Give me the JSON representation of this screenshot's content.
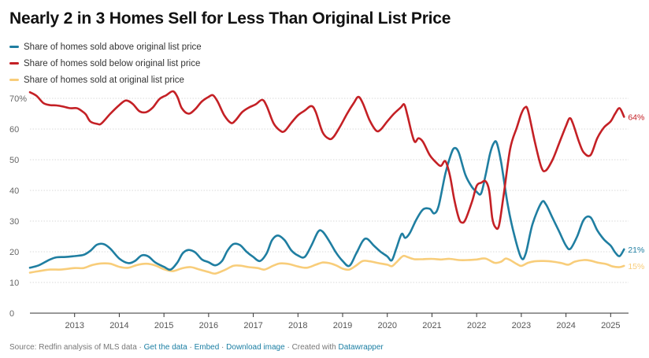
{
  "chart_data": {
    "type": "line",
    "title": "Nearly 2 in 3 Homes Sell for Less Than Original List Price",
    "xlabel": "",
    "ylabel": "",
    "xlim": [
      2012.0,
      2025.4
    ],
    "ylim": [
      0,
      70
    ],
    "yticks": [
      0,
      10,
      20,
      30,
      40,
      50,
      60,
      70
    ],
    "ytick_labels": [
      "0",
      "10",
      "20",
      "30",
      "40",
      "50",
      "60",
      "70%"
    ],
    "xticks": [
      2013,
      2014,
      2015,
      2016,
      2017,
      2018,
      2019,
      2020,
      2021,
      2022,
      2023,
      2024,
      2025
    ],
    "xtick_labels": [
      "2013",
      "2014",
      "2015",
      "2016",
      "2017",
      "2018",
      "2019",
      "2020",
      "2021",
      "2022",
      "2023",
      "2024",
      "2025"
    ],
    "grid": true,
    "legend_position": "top-left",
    "series": [
      {
        "name": "Share of homes sold above original list price",
        "color": "#1f7ea1",
        "end_label": "21%",
        "points": [
          [
            2012.0,
            14.8
          ],
          [
            2012.2,
            15.6
          ],
          [
            2012.45,
            17.5
          ],
          [
            2012.6,
            18.2
          ],
          [
            2012.8,
            18.3
          ],
          [
            2013.0,
            18.6
          ],
          [
            2013.2,
            19.0
          ],
          [
            2013.35,
            20.3
          ],
          [
            2013.5,
            22.3
          ],
          [
            2013.65,
            22.5
          ],
          [
            2013.8,
            21.0
          ],
          [
            2014.0,
            17.8
          ],
          [
            2014.2,
            16.3
          ],
          [
            2014.35,
            17.0
          ],
          [
            2014.5,
            18.8
          ],
          [
            2014.65,
            18.5
          ],
          [
            2014.8,
            16.6
          ],
          [
            2015.0,
            15.1
          ],
          [
            2015.15,
            14.2
          ],
          [
            2015.3,
            16.5
          ],
          [
            2015.42,
            19.5
          ],
          [
            2015.55,
            20.6
          ],
          [
            2015.7,
            19.8
          ],
          [
            2015.85,
            17.5
          ],
          [
            2016.0,
            16.6
          ],
          [
            2016.15,
            15.6
          ],
          [
            2016.3,
            17.0
          ],
          [
            2016.42,
            20.3
          ],
          [
            2016.55,
            22.5
          ],
          [
            2016.7,
            22.2
          ],
          [
            2016.85,
            20.0
          ],
          [
            2017.0,
            18.3
          ],
          [
            2017.15,
            17.0
          ],
          [
            2017.3,
            19.5
          ],
          [
            2017.42,
            23.8
          ],
          [
            2017.55,
            25.3
          ],
          [
            2017.7,
            23.8
          ],
          [
            2017.85,
            20.5
          ],
          [
            2018.0,
            18.8
          ],
          [
            2018.15,
            18.3
          ],
          [
            2018.3,
            22.0
          ],
          [
            2018.45,
            26.5
          ],
          [
            2018.55,
            26.6
          ],
          [
            2018.7,
            23.5
          ],
          [
            2018.85,
            19.8
          ],
          [
            2019.0,
            17.0
          ],
          [
            2019.15,
            15.4
          ],
          [
            2019.3,
            19.3
          ],
          [
            2019.45,
            23.5
          ],
          [
            2019.55,
            24.2
          ],
          [
            2019.7,
            22.0
          ],
          [
            2019.85,
            20.0
          ],
          [
            2020.0,
            18.5
          ],
          [
            2020.1,
            17.2
          ],
          [
            2020.2,
            21.0
          ],
          [
            2020.32,
            25.8
          ],
          [
            2020.4,
            24.5
          ],
          [
            2020.5,
            26.0
          ],
          [
            2020.65,
            30.5
          ],
          [
            2020.8,
            33.8
          ],
          [
            2020.95,
            34.0
          ],
          [
            2021.05,
            32.5
          ],
          [
            2021.15,
            35.0
          ],
          [
            2021.3,
            45.5
          ],
          [
            2021.42,
            51.5
          ],
          [
            2021.5,
            53.8
          ],
          [
            2021.6,
            52.3
          ],
          [
            2021.75,
            45.0
          ],
          [
            2021.9,
            41.0
          ],
          [
            2022.0,
            39.5
          ],
          [
            2022.1,
            39.0
          ],
          [
            2022.2,
            45.0
          ],
          [
            2022.3,
            52.0
          ],
          [
            2022.38,
            55.3
          ],
          [
            2022.45,
            55.5
          ],
          [
            2022.55,
            49.0
          ],
          [
            2022.7,
            35.0
          ],
          [
            2022.85,
            25.0
          ],
          [
            2023.0,
            18.0
          ],
          [
            2023.1,
            19.5
          ],
          [
            2023.25,
            29.0
          ],
          [
            2023.45,
            36.0
          ],
          [
            2023.55,
            35.5
          ],
          [
            2023.7,
            31.0
          ],
          [
            2023.85,
            26.5
          ],
          [
            2024.0,
            22.0
          ],
          [
            2024.1,
            21.0
          ],
          [
            2024.25,
            25.0
          ],
          [
            2024.4,
            30.5
          ],
          [
            2024.55,
            31.2
          ],
          [
            2024.7,
            27.0
          ],
          [
            2024.85,
            24.0
          ],
          [
            2025.0,
            22.0
          ],
          [
            2025.1,
            19.8
          ],
          [
            2025.2,
            18.6
          ],
          [
            2025.3,
            20.8
          ]
        ]
      },
      {
        "name": "Share of homes sold below original list price",
        "color": "#c42025",
        "end_label": "64%",
        "points": [
          [
            2012.0,
            72.0
          ],
          [
            2012.15,
            70.8
          ],
          [
            2012.3,
            68.5
          ],
          [
            2012.45,
            67.8
          ],
          [
            2012.6,
            67.7
          ],
          [
            2012.75,
            67.3
          ],
          [
            2012.9,
            66.8
          ],
          [
            2013.05,
            66.8
          ],
          [
            2013.15,
            66.0
          ],
          [
            2013.25,
            64.8
          ],
          [
            2013.35,
            62.5
          ],
          [
            2013.5,
            61.7
          ],
          [
            2013.6,
            61.8
          ],
          [
            2013.8,
            65.0
          ],
          [
            2014.0,
            67.8
          ],
          [
            2014.15,
            69.3
          ],
          [
            2014.3,
            68.2
          ],
          [
            2014.45,
            65.8
          ],
          [
            2014.6,
            65.5
          ],
          [
            2014.75,
            67.0
          ],
          [
            2014.9,
            69.8
          ],
          [
            2015.05,
            71.0
          ],
          [
            2015.2,
            72.3
          ],
          [
            2015.3,
            70.5
          ],
          [
            2015.4,
            66.8
          ],
          [
            2015.55,
            65.0
          ],
          [
            2015.7,
            66.5
          ],
          [
            2015.85,
            69.0
          ],
          [
            2016.0,
            70.5
          ],
          [
            2016.1,
            71.0
          ],
          [
            2016.2,
            69.0
          ],
          [
            2016.35,
            64.5
          ],
          [
            2016.5,
            62.0
          ],
          [
            2016.6,
            62.8
          ],
          [
            2016.75,
            65.5
          ],
          [
            2016.9,
            67.0
          ],
          [
            2017.05,
            68.0
          ],
          [
            2017.2,
            69.5
          ],
          [
            2017.3,
            67.5
          ],
          [
            2017.45,
            62.0
          ],
          [
            2017.6,
            59.5
          ],
          [
            2017.7,
            59.3
          ],
          [
            2017.85,
            62.0
          ],
          [
            2018.0,
            64.5
          ],
          [
            2018.15,
            66.0
          ],
          [
            2018.3,
            67.5
          ],
          [
            2018.4,
            65.5
          ],
          [
            2018.55,
            59.0
          ],
          [
            2018.7,
            56.8
          ],
          [
            2018.8,
            57.5
          ],
          [
            2018.95,
            61.0
          ],
          [
            2019.1,
            65.0
          ],
          [
            2019.25,
            68.5
          ],
          [
            2019.35,
            70.5
          ],
          [
            2019.45,
            68.5
          ],
          [
            2019.6,
            63.0
          ],
          [
            2019.75,
            59.5
          ],
          [
            2019.85,
            59.8
          ],
          [
            2020.0,
            62.5
          ],
          [
            2020.15,
            65.0
          ],
          [
            2020.3,
            67.0
          ],
          [
            2020.38,
            68.0
          ],
          [
            2020.45,
            64.5
          ],
          [
            2020.55,
            58.5
          ],
          [
            2020.62,
            55.8
          ],
          [
            2020.7,
            57.0
          ],
          [
            2020.8,
            55.8
          ],
          [
            2020.95,
            51.5
          ],
          [
            2021.1,
            49.0
          ],
          [
            2021.2,
            48.0
          ],
          [
            2021.3,
            49.5
          ],
          [
            2021.4,
            45.0
          ],
          [
            2021.5,
            37.0
          ],
          [
            2021.6,
            31.0
          ],
          [
            2021.67,
            29.5
          ],
          [
            2021.75,
            30.5
          ],
          [
            2021.9,
            36.5
          ],
          [
            2022.0,
            41.5
          ],
          [
            2022.1,
            42.5
          ],
          [
            2022.2,
            43.0
          ],
          [
            2022.28,
            40.0
          ],
          [
            2022.35,
            31.0
          ],
          [
            2022.42,
            28.0
          ],
          [
            2022.5,
            28.5
          ],
          [
            2022.6,
            38.0
          ],
          [
            2022.75,
            53.5
          ],
          [
            2022.9,
            60.5
          ],
          [
            2023.0,
            65.0
          ],
          [
            2023.08,
            67.0
          ],
          [
            2023.15,
            66.0
          ],
          [
            2023.3,
            56.0
          ],
          [
            2023.45,
            47.5
          ],
          [
            2023.55,
            46.5
          ],
          [
            2023.7,
            50.0
          ],
          [
            2023.85,
            55.5
          ],
          [
            2024.0,
            61.0
          ],
          [
            2024.08,
            63.5
          ],
          [
            2024.15,
            62.0
          ],
          [
            2024.3,
            55.5
          ],
          [
            2024.4,
            52.3
          ],
          [
            2024.55,
            51.5
          ],
          [
            2024.7,
            57.0
          ],
          [
            2024.85,
            60.5
          ],
          [
            2025.0,
            62.5
          ],
          [
            2025.1,
            65.0
          ],
          [
            2025.2,
            66.8
          ],
          [
            2025.3,
            64.0
          ]
        ]
      },
      {
        "name": "Share of homes sold at original list price",
        "color": "#f8cd7a",
        "end_label": "15%",
        "points": [
          [
            2012.0,
            13.2
          ],
          [
            2012.2,
            13.7
          ],
          [
            2012.45,
            14.2
          ],
          [
            2012.7,
            14.2
          ],
          [
            2013.0,
            14.7
          ],
          [
            2013.2,
            14.7
          ],
          [
            2013.4,
            15.7
          ],
          [
            2013.6,
            16.2
          ],
          [
            2013.8,
            16.1
          ],
          [
            2014.0,
            15.1
          ],
          [
            2014.2,
            14.8
          ],
          [
            2014.4,
            15.7
          ],
          [
            2014.6,
            16.1
          ],
          [
            2014.8,
            15.6
          ],
          [
            2015.0,
            14.3
          ],
          [
            2015.2,
            13.7
          ],
          [
            2015.4,
            14.6
          ],
          [
            2015.6,
            15.0
          ],
          [
            2015.8,
            14.2
          ],
          [
            2016.0,
            13.4
          ],
          [
            2016.15,
            12.9
          ],
          [
            2016.35,
            14.0
          ],
          [
            2016.55,
            15.4
          ],
          [
            2016.7,
            15.5
          ],
          [
            2016.9,
            15.0
          ],
          [
            2017.1,
            14.7
          ],
          [
            2017.25,
            14.2
          ],
          [
            2017.45,
            15.5
          ],
          [
            2017.6,
            16.2
          ],
          [
            2017.8,
            16.0
          ],
          [
            2018.0,
            15.2
          ],
          [
            2018.2,
            14.8
          ],
          [
            2018.4,
            15.8
          ],
          [
            2018.55,
            16.5
          ],
          [
            2018.7,
            16.3
          ],
          [
            2018.85,
            15.6
          ],
          [
            2019.0,
            14.5
          ],
          [
            2019.15,
            14.2
          ],
          [
            2019.3,
            15.5
          ],
          [
            2019.45,
            17.0
          ],
          [
            2019.6,
            16.9
          ],
          [
            2019.8,
            16.3
          ],
          [
            2020.0,
            15.8
          ],
          [
            2020.1,
            15.3
          ],
          [
            2020.2,
            16.5
          ],
          [
            2020.35,
            18.6
          ],
          [
            2020.45,
            18.3
          ],
          [
            2020.6,
            17.6
          ],
          [
            2020.8,
            17.6
          ],
          [
            2021.0,
            17.7
          ],
          [
            2021.2,
            17.5
          ],
          [
            2021.4,
            17.7
          ],
          [
            2021.6,
            17.3
          ],
          [
            2021.8,
            17.3
          ],
          [
            2022.0,
            17.5
          ],
          [
            2022.2,
            17.8
          ],
          [
            2022.4,
            16.4
          ],
          [
            2022.55,
            16.8
          ],
          [
            2022.65,
            17.8
          ],
          [
            2022.75,
            17.3
          ],
          [
            2022.9,
            16.0
          ],
          [
            2023.0,
            15.4
          ],
          [
            2023.15,
            16.4
          ],
          [
            2023.3,
            16.9
          ],
          [
            2023.5,
            17.0
          ],
          [
            2023.7,
            16.8
          ],
          [
            2023.9,
            16.3
          ],
          [
            2024.05,
            15.8
          ],
          [
            2024.2,
            16.8
          ],
          [
            2024.4,
            17.3
          ],
          [
            2024.55,
            17.1
          ],
          [
            2024.7,
            16.5
          ],
          [
            2024.9,
            16.0
          ],
          [
            2025.05,
            15.2
          ],
          [
            2025.2,
            15.0
          ],
          [
            2025.3,
            15.4
          ]
        ]
      }
    ]
  },
  "footer": {
    "source": "Source: Redfin analysis of MLS data",
    "sep1": " · ",
    "get_data": "Get the data",
    "sep2": " · ",
    "embed": "Embed",
    "sep3": "  · ",
    "download": "Download image",
    "sep4": " · ",
    "created_with": "Created with ",
    "datawrapper": "Datawrapper"
  }
}
